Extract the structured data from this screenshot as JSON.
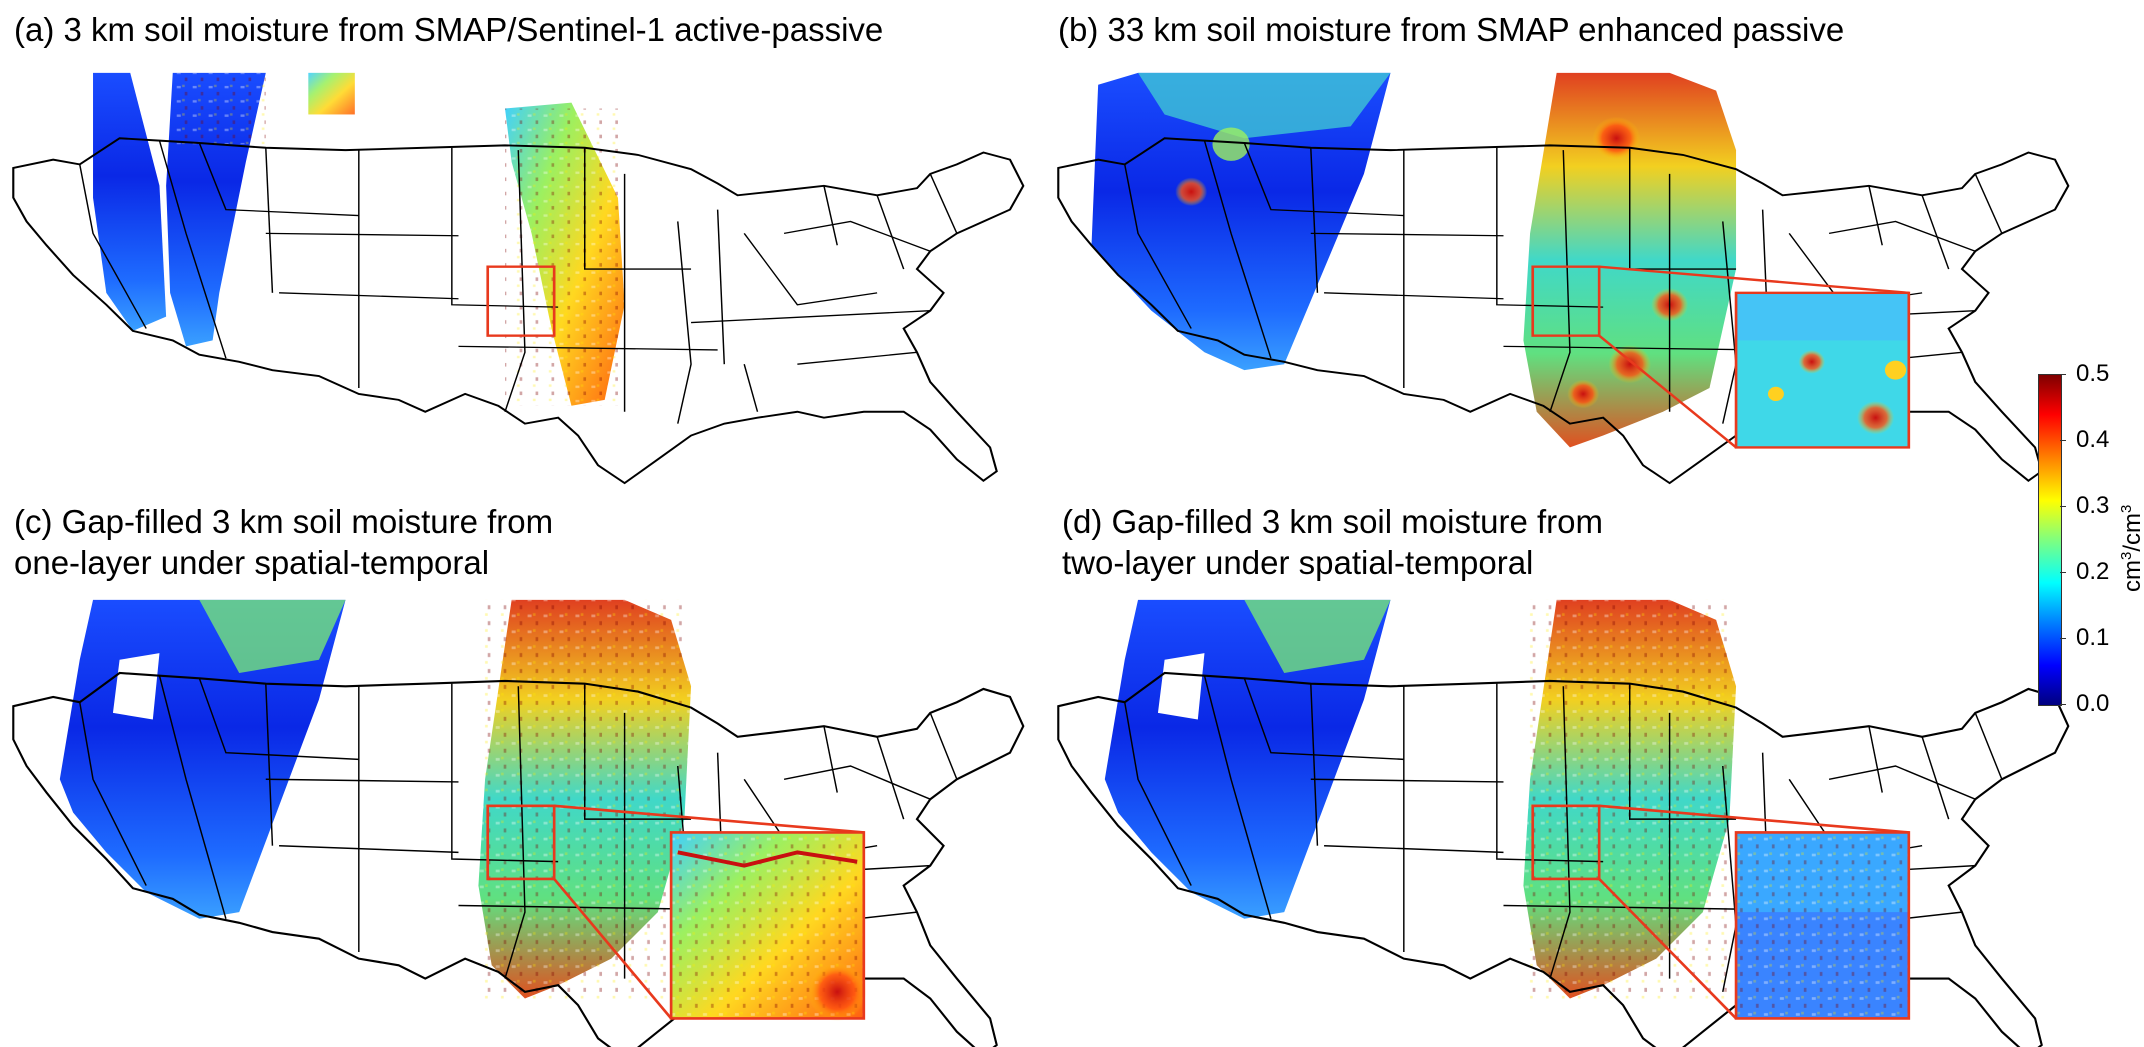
{
  "panels": [
    {
      "id": "a",
      "title": "(a) 3 km soil moisture from SMAP/Sentinel-1 active-passive"
    },
    {
      "id": "b",
      "title": "(b) 33 km soil moisture from SMAP enhanced passive"
    },
    {
      "id": "c",
      "title_line1": "(c) Gap-filled 3 km soil moisture from",
      "title_line2": "one-layer under spatial-temporal"
    },
    {
      "id": "d",
      "title_line1": "(d) Gap-filled 3 km soil moisture from",
      "title_line2": "two-layer under spatial-temporal"
    }
  ],
  "colorbar": {
    "ticks": [
      "0.5",
      "0.4",
      "0.3",
      "0.2",
      "0.1",
      "0.0"
    ],
    "label_base1": "cm",
    "label_sup1": "3",
    "label_mid": "/cm",
    "label_sup2": "3",
    "range": [
      0.0,
      0.5
    ],
    "colormap": "jet"
  },
  "colors": {
    "highlight_box": "#e8391d",
    "state_outline": "#000000"
  }
}
